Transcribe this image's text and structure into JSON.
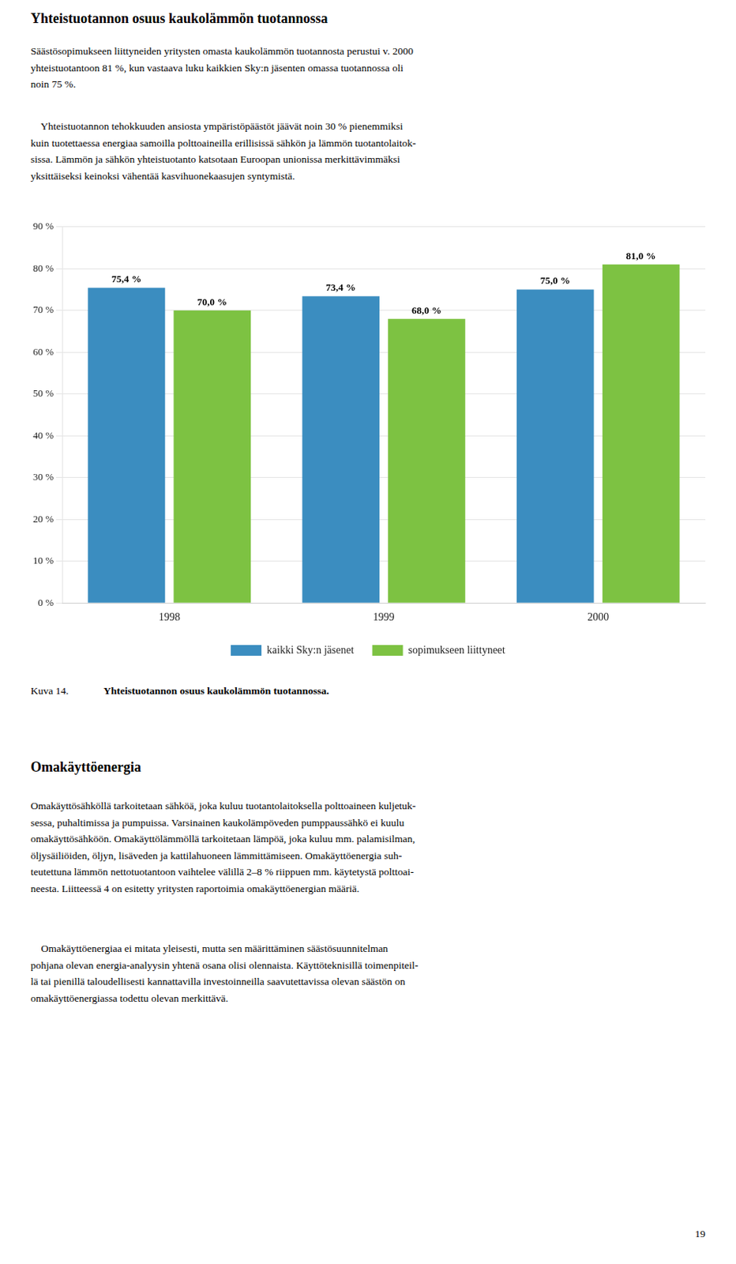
{
  "chart_data": {
    "type": "bar",
    "title": "Yhteistuotannon osuus kaukolämmön tuotannossa",
    "categories": [
      "1998",
      "1999",
      "2000"
    ],
    "series": [
      {
        "name": "kaikki Sky:n jäsenet",
        "color": "#3B8DC0",
        "values": [
          75.4,
          73.4,
          75.0
        ],
        "value_labels": [
          "75,4 %",
          "73,4 %",
          "75,0 %"
        ]
      },
      {
        "name": "sopimukseen liittyneet",
        "color": "#7DC242",
        "values": [
          70.0,
          68.0,
          81.0
        ],
        "value_labels": [
          "70,0 %",
          "68,0 %",
          "81,0 %"
        ]
      }
    ],
    "ylim": [
      0,
      90
    ],
    "yticks": [
      {
        "value": 0,
        "label": "0 %"
      },
      {
        "value": 10,
        "label": "10 %"
      },
      {
        "value": 20,
        "label": "20 %"
      },
      {
        "value": 30,
        "label": "30 %"
      },
      {
        "value": 40,
        "label": "40 %"
      },
      {
        "value": 50,
        "label": "50 %"
      },
      {
        "value": 60,
        "label": "60 %"
      },
      {
        "value": 70,
        "label": "70 %"
      },
      {
        "value": 80,
        "label": "80 %"
      },
      {
        "value": 90,
        "label": "90 %"
      }
    ],
    "grid": true,
    "legend": "bottom",
    "data_labels": true,
    "annotations": [
      "Säästösopimukseen liittyneiden yritysten omasta kaukolämmön tuotannosta perustui v. 2000\nyhteistuotantoon 81 %, kun vastaava luku kaikkien Sky:n jäsenten omassa tuotannossa oli\nnoin 75 %.",
      "    Yhteistuotannon tehokkuuden ansiosta ympäristöpäästöt jäävät noin 30 % pienemmiksi\nkuin tuotettaessa energiaa samoilla polttoaineilla erillisissä sähkön ja lämmön tuotantolaitok-\nsissa. Lämmön ja sähkön yhteistuotanto katsotaan Euroopan unionissa merkittävimmäksi\nyksittäiseksi keinoksi vähentää kasvihuonekaasujen syntymistä.",
      "Kuva 14.",
      "Yhteistuotannon osuus kaukolämmön tuotannossa.",
      "Omakäyttöenergia",
      "Omakäyttösähköllä tarkoitetaan sähköä, joka kuluu tuotantolaitoksella polttoaineen kuljetuk-\nsessa, puhaltimissa ja pumpuissa. Varsinainen kaukolämpöveden pumppaussähkö ei kuulu\nomakäyttösähköön. Omakäyttölämmöllä tarkoitetaan lämpöä, joka kuluu mm. palamisilman,\nöljysäiliöiden, öljyn, lisäveden ja kattilahuoneen lämmittämiseen. Omakäyttöenergia suh-\nteutettuna lämmön nettotuotantoon vaihtelee välillä 2–8 % riippuen mm. käytetystä polttoai-\nneesta. Liitteessä 4 on esitetty yritysten raportoimia omakäyttöenergian määriä.",
      "    Omakäyttöenergiaa ei mitata yleisesti, mutta sen määrittäminen säästösuunnitelman\npohjana olevan energia-analyysin yhtenä osana olisi olennaista. Käyttöteknisillä toimenpiteil-\nlä tai pienillä taloudellisesti kannattavilla investoinneilla saavutettavissa olevan säästön on\nomakäyttöenergiassa todettu olevan merkittävä.",
      "19"
    ]
  }
}
